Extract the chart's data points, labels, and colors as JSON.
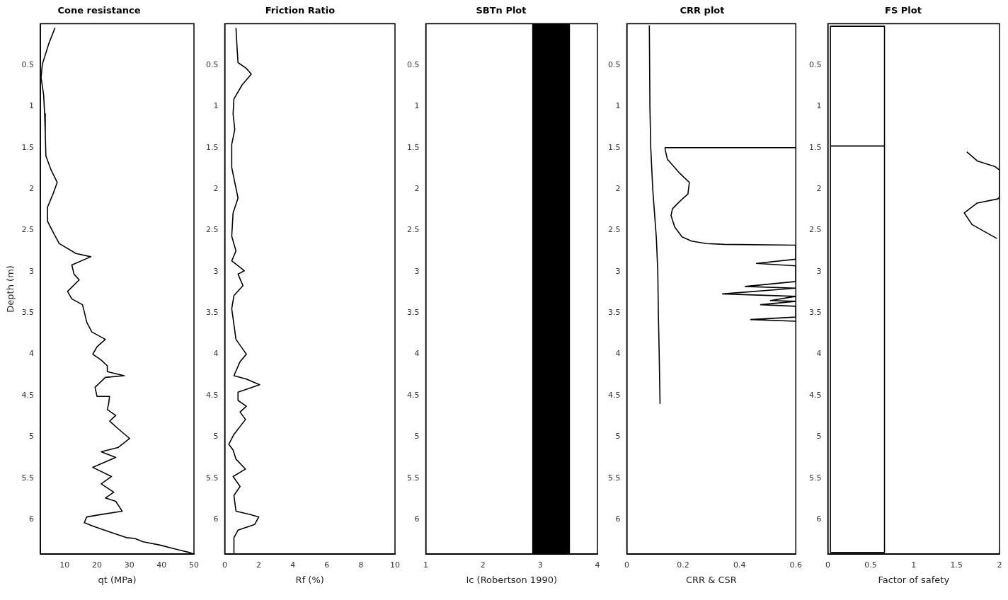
{
  "chart_data": [
    {
      "type": "line",
      "title": "Cone resistance",
      "xlabel": "qt (MPa)",
      "ylabel": "Depth (m)",
      "xlim": [
        2.5,
        50
      ],
      "xticks": [
        10,
        20,
        30,
        40,
        50
      ],
      "ylim": [
        6.42,
        0
      ],
      "yticks": [
        0.5,
        1,
        1.5,
        2,
        2.5,
        3,
        3.5,
        4,
        4.5,
        5,
        5.5,
        6
      ],
      "grid": false,
      "series": [
        {
          "color": "#000000",
          "x": [
            7.0,
            5.1,
            3.1,
            2.7,
            3.5,
            3.8,
            4.0,
            4.2,
            5.7,
            7.7,
            6.4,
            4.7,
            4.7,
            6.4,
            8.3,
            13.5,
            18.1,
            12.2,
            12.9,
            14.5,
            10.9,
            12.2,
            15.5,
            16.1,
            16.8,
            18.4,
            22.6,
            20.0,
            18.7,
            21.3,
            23.2,
            23.2,
            28.4,
            22.6,
            19.4,
            20.0,
            23.9,
            23.6,
            23.2,
            25.8,
            23.9,
            26.5,
            30.1,
            26.5,
            21.3,
            25.8,
            18.7,
            24.5,
            21.3,
            25.2,
            22.6,
            25.8,
            27.8,
            21.3,
            16.8,
            16.1,
            18.7,
            23.9,
            29.1,
            31.7,
            34.3,
            39.5,
            43.4,
            48.6,
            50
          ],
          "values": [
            0.05,
            0.24,
            0.49,
            0.65,
            0.86,
            1.09,
            1.32,
            1.6,
            1.76,
            1.92,
            2.06,
            2.22,
            2.39,
            2.52,
            2.66,
            2.78,
            2.82,
            2.92,
            3.03,
            3.1,
            3.24,
            3.33,
            3.4,
            3.49,
            3.61,
            3.73,
            3.82,
            3.91,
            4.0,
            4.07,
            4.14,
            4.21,
            4.26,
            4.28,
            4.4,
            4.51,
            4.51,
            4.6,
            4.67,
            4.74,
            4.81,
            4.9,
            5.02,
            5.13,
            5.18,
            5.25,
            5.37,
            5.48,
            5.57,
            5.67,
            5.74,
            5.78,
            5.9,
            5.94,
            5.97,
            6.04,
            6.08,
            6.15,
            6.22,
            6.23,
            6.27,
            6.31,
            6.35,
            6.4,
            6.42
          ]
        }
      ]
    },
    {
      "type": "line",
      "title": "Friction Ratio",
      "xlabel": "Rf (%)",
      "xlim": [
        0,
        10
      ],
      "xticks": [
        0,
        2,
        4,
        6,
        8,
        10
      ],
      "ylim": [
        6.42,
        0
      ],
      "yticks": [
        0.5,
        1,
        1.5,
        2,
        2.5,
        3,
        3.5,
        4,
        4.5,
        5,
        5.5,
        6
      ],
      "grid": false,
      "series": [
        {
          "color": "#000000",
          "x": [
            0.66,
            0.73,
            0.78,
            1.27,
            1.56,
            1.02,
            0.54,
            0.49,
            0.59,
            0.41,
            0.41,
            0.78,
            0.49,
            0.41,
            0.66,
            0.41,
            1.15,
            0.78,
            1.07,
            0.54,
            0.41,
            0.54,
            0.66,
            1.27,
            0.9,
            0.54,
            1.27,
            2.05,
            0.78,
            0.78,
            1.27,
            0.9,
            1.22,
            0.54,
            0.24,
            0.49,
            0.66,
            1.22,
            0.49,
            0.9,
            0.54,
            0.66,
            1.51,
            2.0,
            1.76,
            0.78,
            0.54,
            0.54
          ],
          "values": [
            0.05,
            0.31,
            0.47,
            0.54,
            0.61,
            0.74,
            0.91,
            1.09,
            1.28,
            1.46,
            1.74,
            2.11,
            2.29,
            2.57,
            2.75,
            2.87,
            2.99,
            3.03,
            3.17,
            3.29,
            3.45,
            3.64,
            3.82,
            4.0,
            4.09,
            4.26,
            4.3,
            4.37,
            4.46,
            4.56,
            4.63,
            4.7,
            4.79,
            4.97,
            5.09,
            5.16,
            5.27,
            5.39,
            5.48,
            5.6,
            5.71,
            5.9,
            5.94,
            5.97,
            6.06,
            6.13,
            6.22,
            6.41
          ]
        }
      ]
    },
    {
      "type": "line",
      "title": "SBTn Plot",
      "xlabel": "Ic (Robertson 1990)",
      "xlim": [
        1,
        4
      ],
      "xticks": [
        1,
        2,
        3,
        4
      ],
      "ylim": [
        6.42,
        0
      ],
      "yticks": [
        0.5,
        1,
        1.5,
        2,
        2.5,
        3,
        3.5,
        4,
        4.5,
        5,
        5.5,
        6
      ],
      "grid": false,
      "bands": [
        {
          "axis": "x",
          "from": 2.86,
          "to": 3.52,
          "color": "#000000"
        }
      ]
    },
    {
      "type": "line",
      "title": "CRR plot",
      "xlabel": "CRR & CSR",
      "xlim": [
        0,
        0.6
      ],
      "xticks": [
        0,
        0.2,
        0.4,
        0.6
      ],
      "ylim": [
        6.42,
        0
      ],
      "yticks": [
        0.5,
        1,
        1.5,
        2,
        2.5,
        3,
        3.5,
        4,
        4.5,
        5,
        5.5,
        6
      ],
      "grid": false,
      "series": [
        {
          "color": "#000000",
          "x": [
            0.08,
            0.082,
            0.085,
            0.092,
            0.105,
            0.11,
            0.112,
            0.115,
            0.118
          ],
          "values": [
            0.02,
            1.0,
            1.5,
            2.0,
            2.6,
            3.0,
            3.5,
            4.0,
            4.6
          ]
        },
        {
          "color": "#000000",
          "x": [
            0.6,
            0.136,
            0.136,
            0.144,
            0.188,
            0.222,
            0.217,
            0.188,
            0.162,
            0.157,
            0.17,
            0.196,
            0.23,
            0.282,
            0.345,
            0.6,
            0.6,
            0.46,
            0.6,
            0.6,
            0.42,
            0.6,
            0.34,
            0.6,
            0.51,
            0.6,
            0.475,
            0.6,
            0.6,
            0.44,
            0.6
          ],
          "values": [
            1.5,
            1.5,
            1.52,
            1.64,
            1.81,
            1.92,
            2.06,
            2.15,
            2.24,
            2.32,
            2.46,
            2.58,
            2.63,
            2.66,
            2.67,
            2.68,
            2.85,
            2.9,
            2.93,
            3.12,
            3.18,
            3.2,
            3.27,
            3.3,
            3.35,
            3.36,
            3.4,
            3.42,
            3.55,
            3.58,
            3.6
          ]
        }
      ]
    },
    {
      "type": "line",
      "title": "FS Plot",
      "xlabel": "Factor of safety",
      "xlim": [
        0,
        2
      ],
      "xticks": [
        0,
        0.5,
        1,
        1.5,
        2
      ],
      "ylim": [
        6.42,
        0
      ],
      "yticks": [
        0.5,
        1,
        1.5,
        2,
        2.5,
        3,
        3.5,
        4,
        4.5,
        5,
        5.5,
        6
      ],
      "grid": false,
      "series": [
        {
          "color": "#000000",
          "x": [
            0.66,
            0.03,
            0.03,
            0.66,
            0.66,
            0.03,
            0.03
          ],
          "values": [
            1.48,
            1.48,
            0.03,
            0.03,
            6.4,
            6.4,
            1.48
          ]
        },
        {
          "color": "#000000",
          "x": [
            1.62,
            1.74,
            1.95,
            2,
            2,
            1.98,
            1.74,
            1.59,
            1.68,
            1.97
          ],
          "values": [
            1.55,
            1.66,
            1.73,
            1.77,
            2.1,
            2.12,
            2.17,
            2.29,
            2.43,
            2.6
          ]
        }
      ]
    }
  ]
}
